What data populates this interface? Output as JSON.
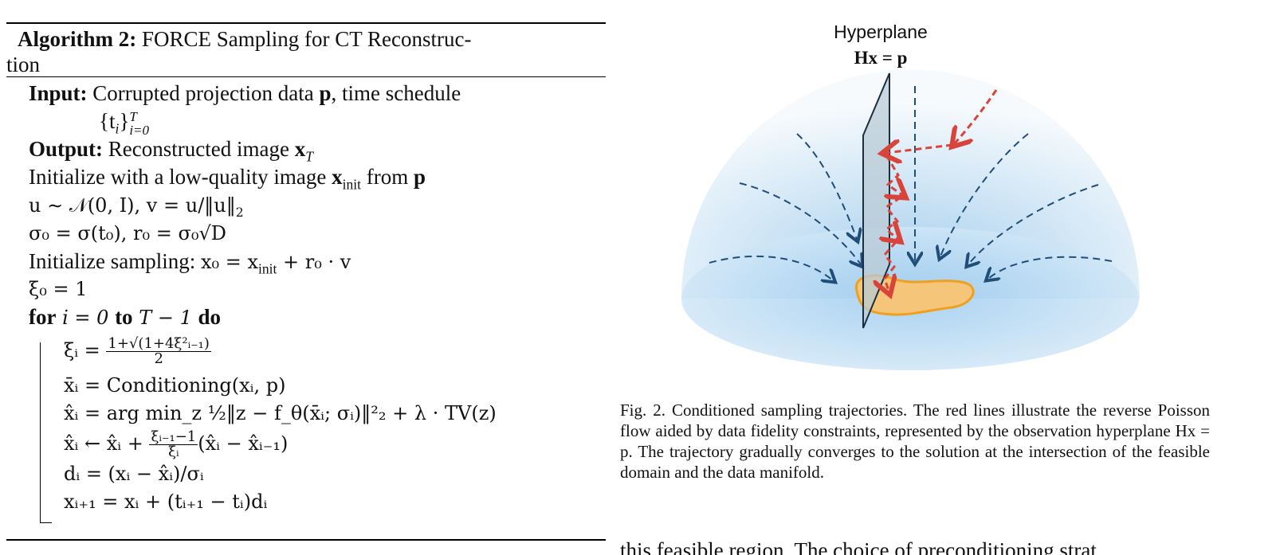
{
  "algorithm": {
    "label": "Algorithm 2:",
    "title_line1": " FORCE Sampling for CT Reconstruc-",
    "title_line2": "tion",
    "input_label": "Input:",
    "input_text": " Corrupted projection data ",
    "input_p": "p",
    "input_text2": ", time schedule",
    "input_sched": "{t",
    "input_sched_sub": "i",
    "input_sched_close": "}",
    "input_sched_sup": "T",
    "input_sched_sub2": "i=0",
    "output_label": "Output:",
    "output_text": " Reconstructed image ",
    "output_x": "x",
    "output_sub": "T",
    "init_text": "Initialize with a low-quality image ",
    "init_x": "x",
    "init_sub": "init",
    "init_from": " from ",
    "init_p": "p",
    "u_line": "u ∼ 𝒩(0, I), v = u/‖u‖",
    "u_sub": "2",
    "sigma_line": "σ₀ = σ(t₀), r₀ = σ₀√D",
    "sampling_text": "Initialize sampling: ",
    "sampling_math": "x₀ = x",
    "sampling_sub": "init",
    "sampling_math2": " + r₀ · v",
    "xi0_line": "ξ₀ = 1",
    "for_kw": "for",
    "for_math": " i = 0 ",
    "to_kw": "to",
    "to_math": " T − 1 ",
    "do_kw": "do",
    "step1_lhs": "ξᵢ = ",
    "step1_num": "1+√(1+4ξ²ᵢ₋₁)",
    "step1_den": "2",
    "step2": "x̄ᵢ = Conditioning(xᵢ, p)",
    "step3": "x̂ᵢ = arg min_z ½‖z − f_θ(x̄ᵢ; σᵢ)‖²₂ + λ · TV(z)",
    "step4_lhs": "x̂ᵢ ← x̂ᵢ + ",
    "step4_num": "ξᵢ₋₁−1",
    "step4_den": "ξᵢ",
    "step4_rhs": "(x̂ᵢ − x̂ᵢ₋₁)",
    "step5": "dᵢ = (xᵢ − x̂ᵢ)/σᵢ",
    "step6": "xᵢ₊₁ = xᵢ + (tᵢ₊₁ − tᵢ)dᵢ"
  },
  "figure": {
    "hyperplane_label": "Hyperplane",
    "hyperplane_eq": "Hx = p",
    "caption": "Fig. 2.  Conditioned sampling trajectories. The red lines illustrate the reverse Poisson flow aided by data fidelity constraints, represented by the observation hyperplane Hx = p. The trajectory gradually converges to the solution at the intersection of the feasible domain and the data manifold.",
    "colors": {
      "dome_light": "#eaf4fb",
      "dome_dark": "#a9d0ee",
      "arrows": "#1f4e79",
      "trajectory": "#d9443a",
      "manifold_fill": "#f5c67a",
      "manifold_stroke": "#f0a020",
      "plane_fill": "#b9cbd6"
    }
  },
  "body": {
    "partial_line": "this feasible region. The choice of preconditioning strat"
  }
}
